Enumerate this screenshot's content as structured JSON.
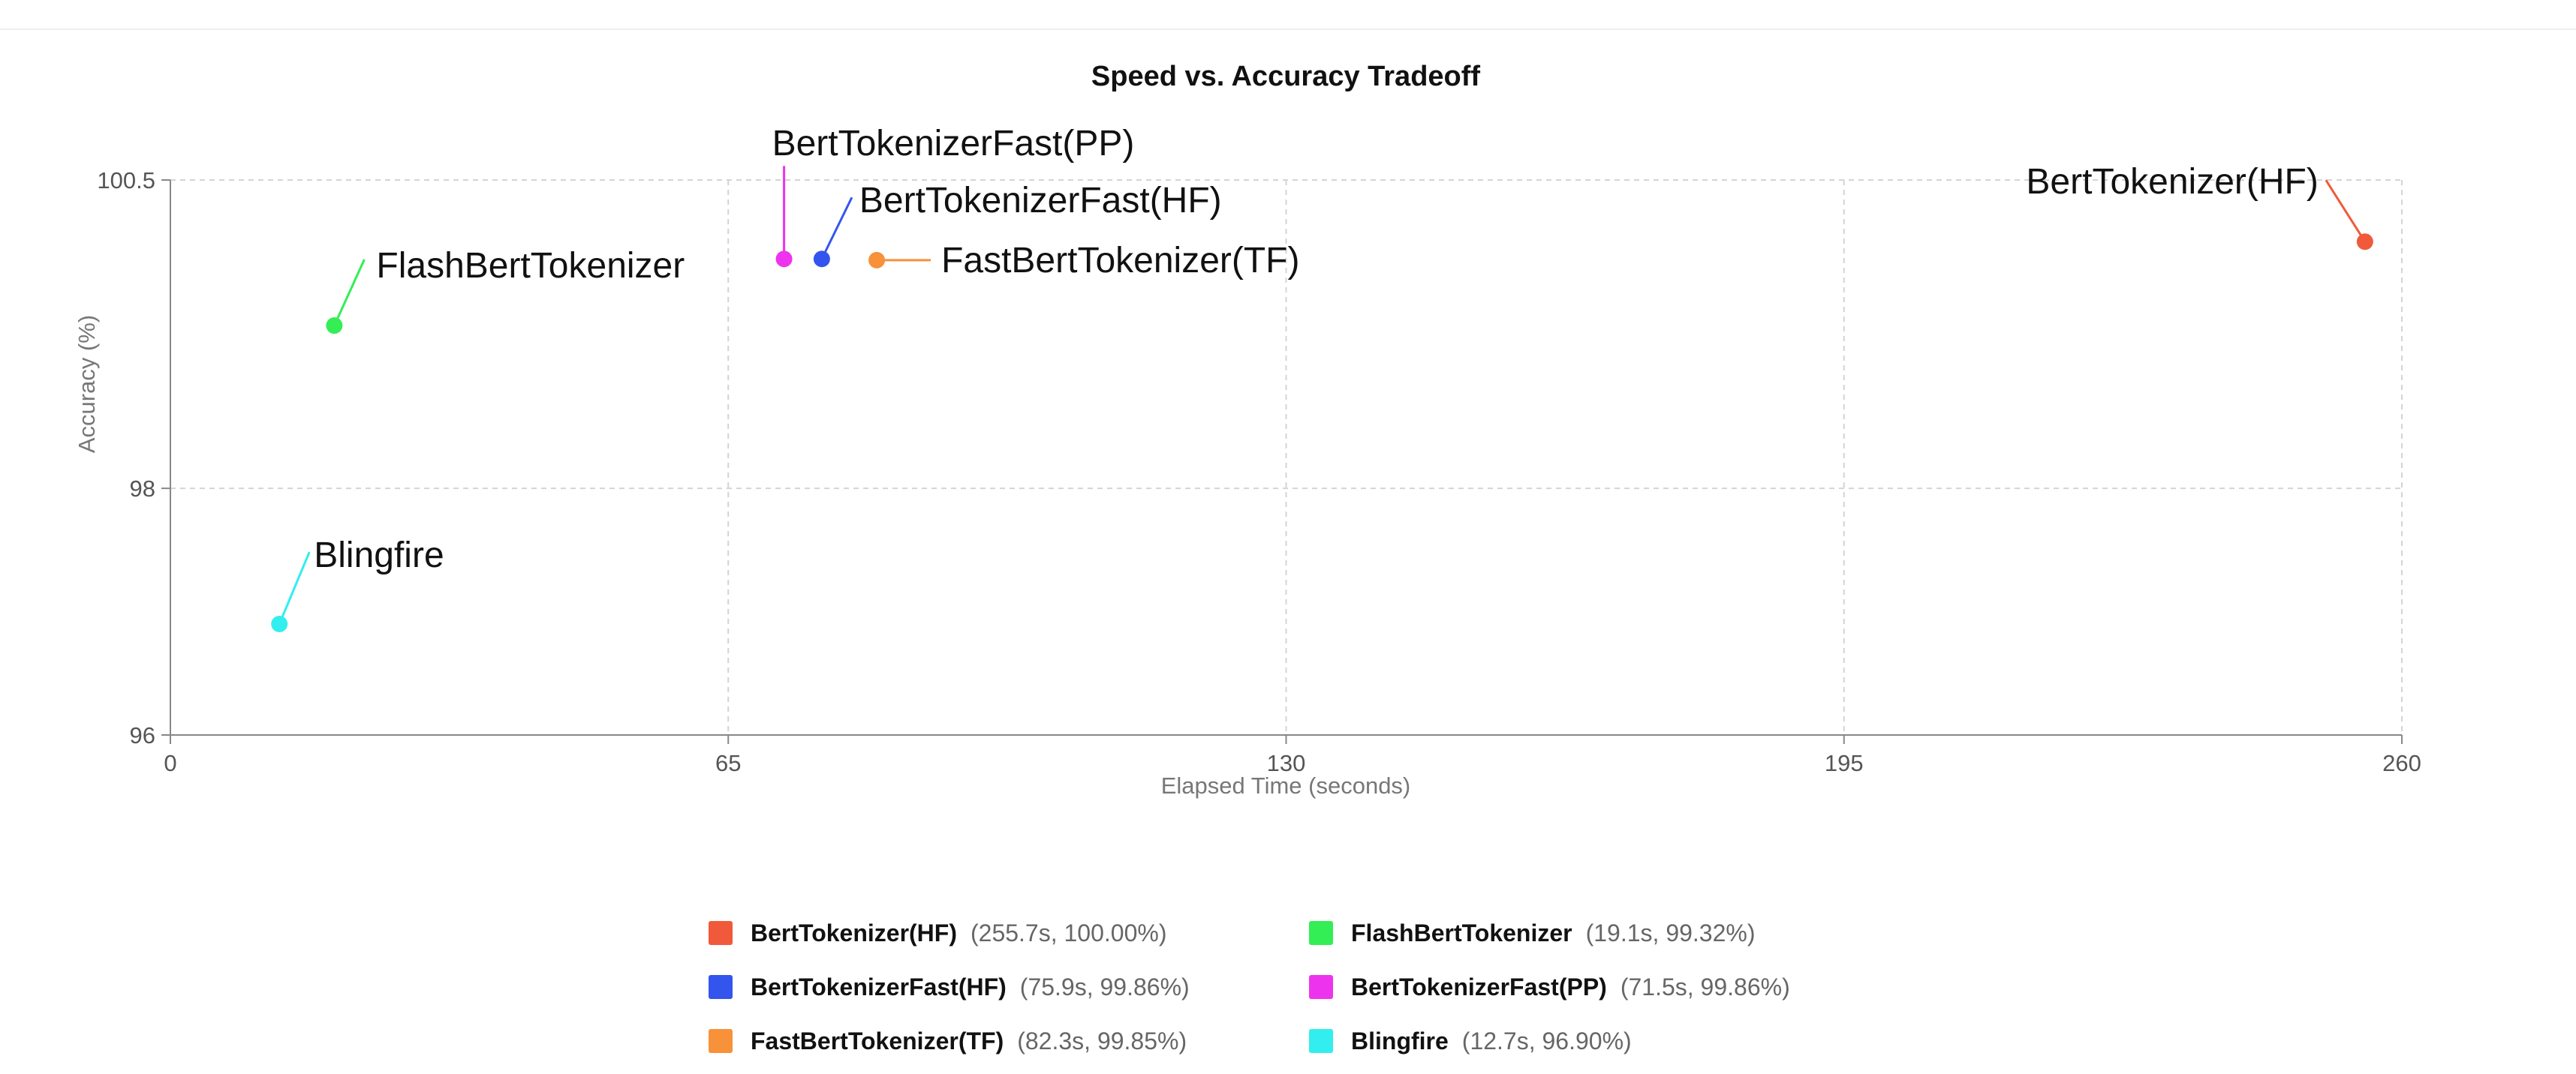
{
  "chart_data": {
    "type": "scatter",
    "title": "Speed vs. Accuracy Tradeoff",
    "xlabel": "Elapsed Time (seconds)",
    "ylabel": "Accuracy (%)",
    "xlim": [
      0,
      260
    ],
    "ylim": [
      96,
      100.5
    ],
    "x_ticks": [
      "0",
      "65",
      "130",
      "195",
      "260"
    ],
    "y_ticks": [
      "96",
      "98",
      "100.5"
    ],
    "grid": true,
    "legend_position": "bottom",
    "points": [
      {
        "name": "BertTokenizer(HF)",
        "x": 255.7,
        "y": 100.0,
        "color": "#f05a3a",
        "meta": "(255.7s, 100.00%)"
      },
      {
        "name": "BertTokenizerFast(HF)",
        "x": 75.9,
        "y": 99.86,
        "color": "#3355ee",
        "meta": "(75.9s, 99.86%)"
      },
      {
        "name": "FastBertTokenizer(TF)",
        "x": 82.3,
        "y": 99.85,
        "color": "#f7913a",
        "meta": "(82.3s, 99.85%)"
      },
      {
        "name": "FlashBertTokenizer",
        "x": 19.1,
        "y": 99.32,
        "color": "#33ee55",
        "meta": "(19.1s, 99.32%)"
      },
      {
        "name": "BertTokenizerFast(PP)",
        "x": 71.5,
        "y": 99.86,
        "color": "#ee33ee",
        "meta": "(71.5s, 99.86%)"
      },
      {
        "name": "Blingfire",
        "x": 12.7,
        "y": 96.9,
        "color": "#33eeee",
        "meta": "(12.7s, 96.90%)"
      }
    ]
  }
}
